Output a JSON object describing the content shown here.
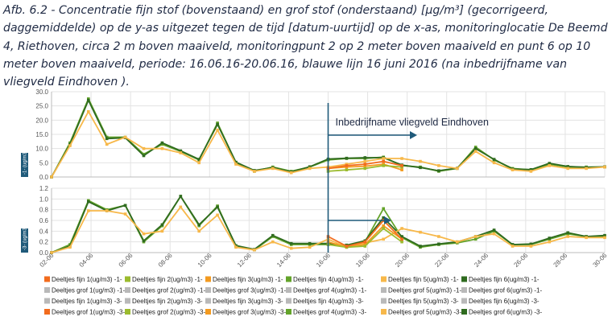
{
  "caption": "Afb. 6.2 - Concentratie fijn stof (bovenstaand) en grof stof (onderstaand) [µg/m³] (gecorrigeerd, daggemiddelde) op de y-as uitgezet tegen de tijd [datum-uurtijd] op de x-as, monitoringlocatie De Beemd 4, Riethoven, circa 2 m boven maaiveld, monitoringpunt 2 op 2 meter boven maaiveld en punt 6 op 10 meter boven maaiveld, periode: 16.06.16-20.06.16, blauwe lijn 16 juni 2016 (na inbedrijfname van vliegveld Eindhoven ).",
  "colors": {
    "fijn1": "#f26b1d",
    "fijn2": "#9bbb2e",
    "fijn3": "#f39a1f",
    "fijn4": "#63a32a",
    "fijn5": "#f7b84a",
    "fijn6": "#2f6b1f",
    "grof_disabled": "#b9b9b9",
    "marker": "#1f5a7a",
    "grid": "#e3e3e3",
    "axis": "#bbbbbb"
  },
  "chart_data": [
    {
      "type": "line",
      "panel_tab": "-1- (ug/m3)",
      "ylim": [
        0,
        30
      ],
      "yticks": [
        "0.0",
        "5.0",
        "10.0",
        "15.0",
        "20.0",
        "25.0",
        "30.0"
      ],
      "series": [
        {
          "name": "Deeltjes fijn 4(ug/m3) -1-",
          "color": "#63a32a",
          "x": [
            0,
            1,
            2,
            3,
            4,
            5,
            6,
            7,
            8,
            9,
            10,
            11,
            12,
            13,
            14,
            15,
            16,
            17,
            18,
            19,
            20,
            21,
            22,
            23,
            24,
            25,
            26,
            27,
            28,
            29,
            30
          ],
          "values": [
            0,
            12,
            27.5,
            14,
            14,
            8,
            11.5,
            9,
            6,
            19,
            5,
            2,
            3.5,
            2,
            3.5,
            6,
            6.5,
            6.5,
            7,
            4,
            3.5,
            2,
            3,
            10.5,
            6,
            3,
            2.5,
            4.5,
            3.5,
            3.5,
            3.5
          ]
        },
        {
          "name": "Deeltjes fijn 6(ug/m3) -1-",
          "color": "#2f6b1f",
          "x": [
            0,
            1,
            2,
            3,
            4,
            5,
            6,
            7,
            8,
            9,
            10,
            11,
            12,
            13,
            14,
            15,
            16,
            17,
            18,
            19,
            20,
            21,
            22,
            23,
            24,
            25,
            26,
            27,
            28,
            29,
            30
          ],
          "values": [
            0,
            11.5,
            27,
            13.5,
            13.8,
            7.5,
            12,
            9.2,
            6.2,
            18.5,
            5.2,
            2.3,
            3.3,
            1.8,
            3.6,
            6.3,
            6.6,
            6.8,
            6.8,
            4.2,
            3.3,
            2.2,
            3.1,
            10,
            6.2,
            2.8,
            2.6,
            4.8,
            3.7,
            3.4,
            3.6
          ]
        },
        {
          "name": "Deeltjes fijn 5(ug/m3) -1-",
          "color": "#f7b84a",
          "x": [
            0,
            1,
            2,
            3,
            4,
            5,
            6,
            7,
            8,
            9,
            10,
            11,
            12,
            13,
            14,
            15,
            16,
            17,
            18,
            19,
            20,
            21,
            22,
            23,
            24,
            25,
            26,
            27,
            28,
            29,
            30
          ],
          "values": [
            0,
            11,
            23,
            11.5,
            14,
            10,
            10,
            8.5,
            5,
            16.5,
            4.5,
            2,
            3,
            1.5,
            3,
            3.5,
            4.5,
            5.5,
            6.5,
            6.5,
            5.5,
            4,
            3,
            9,
            5,
            2.5,
            2,
            4,
            3,
            3,
            3.5
          ]
        },
        {
          "name": "Deeltjes fijn 3(ug/m3) -1-",
          "color": "#f39a1f",
          "x": [
            15,
            16,
            17,
            18,
            19
          ],
          "values": [
            3,
            3.5,
            3.8,
            4.5,
            2.5
          ]
        },
        {
          "name": "Deeltjes fijn 2(ug/m3) -1-",
          "color": "#9bbb2e",
          "x": [
            15,
            16,
            17,
            18,
            19
          ],
          "values": [
            2,
            2.5,
            3,
            4,
            3.5
          ]
        },
        {
          "name": "Deeltjes fijn 1(ug/m3) -1-",
          "color": "#f26b1d",
          "x": [
            15,
            16,
            17,
            18,
            19
          ],
          "values": [
            3,
            4,
            4.5,
            5.5,
            4
          ]
        }
      ]
    },
    {
      "type": "line",
      "panel_tab": "-3- (ug/m3)",
      "ylim": [
        0,
        1.2
      ],
      "yticks": [
        "0.0",
        "0.2",
        "0.4",
        "0.6",
        "0.8",
        "1.0",
        "1.2"
      ],
      "series": [
        {
          "name": "Deeltjes grof 4(ug/m3) -3-",
          "color": "#63a32a",
          "x": [
            0,
            1,
            2,
            3,
            4,
            5,
            6,
            7,
            8,
            9,
            10,
            11,
            12,
            13,
            14,
            15,
            16,
            17,
            18,
            19,
            20,
            21,
            22,
            23,
            24,
            25,
            26,
            27,
            28,
            29,
            30
          ],
          "values": [
            0,
            0.15,
            0.97,
            0.8,
            0.88,
            0.2,
            0.5,
            1.05,
            0.5,
            0.87,
            0.12,
            0.05,
            0.3,
            0.15,
            0.15,
            0.15,
            0.12,
            0.2,
            0.82,
            0.28,
            0.1,
            0.15,
            0.18,
            0.25,
            0.4,
            0.15,
            0.15,
            0.25,
            0.35,
            0.3,
            0.3
          ]
        },
        {
          "name": "Deeltjes grof 6(ug/m3) -3-",
          "color": "#2f6b1f",
          "x": [
            0,
            1,
            2,
            3,
            4,
            5,
            6,
            7,
            8,
            9,
            10,
            11,
            12,
            13,
            14,
            15,
            16,
            17,
            18,
            19,
            20,
            21,
            22,
            23,
            24,
            25,
            26,
            27,
            28,
            29,
            30
          ],
          "values": [
            0,
            0.12,
            0.95,
            0.78,
            0.88,
            0.22,
            0.52,
            1.05,
            0.52,
            0.85,
            0.13,
            0.06,
            0.32,
            0.17,
            0.17,
            0.17,
            0.14,
            0.22,
            0.65,
            0.3,
            0.12,
            0.16,
            0.2,
            0.3,
            0.42,
            0.15,
            0.16,
            0.27,
            0.37,
            0.3,
            0.32
          ]
        },
        {
          "name": "Deeltjes grof 5(ug/m3) -3-",
          "color": "#f7b84a",
          "x": [
            0,
            1,
            2,
            3,
            4,
            5,
            6,
            7,
            8,
            9,
            10,
            11,
            12,
            13,
            14,
            15,
            16,
            17,
            18,
            19,
            20,
            21,
            22,
            23,
            24,
            25,
            26,
            27,
            28,
            29,
            30
          ],
          "values": [
            0,
            0.1,
            0.78,
            0.78,
            0.72,
            0.35,
            0.4,
            0.85,
            0.4,
            0.7,
            0.1,
            0.05,
            0.2,
            0.08,
            0.1,
            0.25,
            0.1,
            0.18,
            0.25,
            0.45,
            0.38,
            0.3,
            0.2,
            0.3,
            0.35,
            0.12,
            0.12,
            0.2,
            0.3,
            0.28,
            0.28
          ]
        },
        {
          "name": "Deeltjes grof 3(ug/m3) -3-",
          "color": "#f39a1f",
          "x": [
            15,
            16,
            17,
            18,
            19
          ],
          "values": [
            0.2,
            0.1,
            0.15,
            0.5,
            0.25
          ]
        },
        {
          "name": "Deeltjes grof 2(ug/m3) -3-",
          "color": "#9bbb2e",
          "x": [
            15,
            16,
            17,
            18,
            19
          ],
          "values": [
            0.15,
            0.1,
            0.12,
            0.45,
            0.2
          ]
        },
        {
          "name": "Deeltjes grof 1(ug/m3) -3-",
          "color": "#f26b1d",
          "x": [
            15,
            16,
            17,
            18,
            19
          ],
          "values": [
            0.3,
            0.12,
            0.2,
            0.6,
            0.25
          ]
        }
      ]
    }
  ],
  "x_ticks": [
    "02-06",
    "04-06",
    "06-06",
    "08-06",
    "10-06",
    "12-06",
    "14-06",
    "16-06",
    "18-06",
    "20-06",
    "22-06",
    "24-06",
    "26-06",
    "28-06",
    "30-06"
  ],
  "x_domain": [
    0,
    30
  ],
  "marker_x": 15,
  "annotation": "Inbedrijfname vliegveld Eindhoven",
  "legend": [
    [
      {
        "label": "Deeltjes fijn 1(ug/m3) -1-",
        "color": "#f26b1d",
        "enabled": true
      },
      {
        "label": "Deeltjes fijn 2(ug/m3) -1-",
        "color": "#9bbb2e",
        "enabled": true
      },
      {
        "label": "Deeltjes fijn 3(ug/m3) -1-",
        "color": "#f39a1f",
        "enabled": true
      },
      {
        "label": "Deeltjes fijn 4(ug/m3) -1-",
        "color": "#63a32a",
        "enabled": true
      },
      {
        "label": "Deeltjes fijn 5(ug/m3) -1-",
        "color": "#f7b84a",
        "enabled": true
      },
      {
        "label": "Deeltjes fijn 6(ug/m3) -1-",
        "color": "#2f6b1f",
        "enabled": true
      }
    ],
    [
      {
        "label": "Deeltjes grof 1(ug/m3) -1-",
        "color": "#b9b9b9",
        "enabled": false
      },
      {
        "label": "Deeltjes grof 2(ug/m3) -1-",
        "color": "#b9b9b9",
        "enabled": false
      },
      {
        "label": "Deeltjes grof 3(ug/m3) -1-",
        "color": "#b9b9b9",
        "enabled": false
      },
      {
        "label": "Deeltjes grof 4(ug/m3) -1-",
        "color": "#b9b9b9",
        "enabled": false
      },
      {
        "label": "Deeltjes grof 5(ug/m3) -1-",
        "color": "#b9b9b9",
        "enabled": false
      },
      {
        "label": "Deeltjes grof 6(ug/m3) -1-",
        "color": "#b9b9b9",
        "enabled": false
      }
    ],
    [
      {
        "label": "Deeltjes fijn 1(ug/m3) -3-",
        "color": "#b9b9b9",
        "enabled": false
      },
      {
        "label": "Deeltjes fijn 2(ug/m3) -3-",
        "color": "#b9b9b9",
        "enabled": false
      },
      {
        "label": "Deeltjes fijn 3(ug/m3) -3-",
        "color": "#b9b9b9",
        "enabled": false
      },
      {
        "label": "Deeltjes fijn 4(ug/m3) -3-",
        "color": "#b9b9b9",
        "enabled": false
      },
      {
        "label": "Deeltjes fijn 5(ug/m3) -3-",
        "color": "#b9b9b9",
        "enabled": false
      },
      {
        "label": "Deeltjes fijn 6(ug/m3) -3-",
        "color": "#b9b9b9",
        "enabled": false
      }
    ],
    [
      {
        "label": "Deeltjes grof 1(ug/m3) -3-",
        "color": "#f26b1d",
        "enabled": true
      },
      {
        "label": "Deeltjes grof 2(ug/m3) -3-",
        "color": "#9bbb2e",
        "enabled": true
      },
      {
        "label": "Deeltjes grof 3(ug/m3) -3-",
        "color": "#f39a1f",
        "enabled": true
      },
      {
        "label": "Deeltjes grof 4(ug/m3) -3-",
        "color": "#63a32a",
        "enabled": true
      },
      {
        "label": "Deeltjes grof 5(ug/m3) -3-",
        "color": "#f7b84a",
        "enabled": true
      },
      {
        "label": "Deeltjes grof 6(ug/m3) -3-",
        "color": "#2f6b1f",
        "enabled": true
      }
    ]
  ]
}
